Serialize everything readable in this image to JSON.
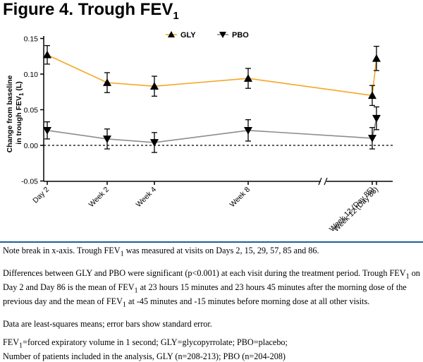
{
  "figure_title": "Figure 4. Trough FEV",
  "figure_title_sub": "1",
  "chart_data": {
    "type": "line",
    "title": "Figure 4. Trough FEV1",
    "ylabel_line1": "Change from baseline",
    "ylabel_line2_pre": "in trough FEV",
    "ylabel_line2_sub": "1",
    "ylabel_line2_post": " (L)",
    "ylim": [
      -0.05,
      0.15
    ],
    "yticks": [
      "0.15",
      "0.10",
      "0.05",
      "0.00",
      "-0.05"
    ],
    "ytick_values": [
      0.15,
      0.1,
      0.05,
      0.0,
      -0.05
    ],
    "categories": [
      "Day 2",
      "Week 2",
      "Week 4",
      "Week 8",
      "Week 12 (Day 85)",
      "Week 12 (Day 86)"
    ],
    "x_days": [
      2,
      15,
      29,
      57,
      85,
      86
    ],
    "series": [
      {
        "name": "GLY",
        "color": "#f5a623",
        "marker": "triangle-up",
        "values": [
          0.127,
          0.088,
          0.083,
          0.094,
          0.07,
          0.122
        ],
        "errors": [
          0.013,
          0.014,
          0.014,
          0.014,
          0.014,
          0.017
        ]
      },
      {
        "name": "PBO",
        "color": "#8c8c8c",
        "marker": "triangle-down",
        "values": [
          0.021,
          0.009,
          0.004,
          0.021,
          0.01,
          0.038
        ],
        "errors": [
          0.012,
          0.014,
          0.014,
          0.015,
          0.015,
          0.016
        ]
      }
    ],
    "legend_position": "top-center",
    "reference_line": 0.0,
    "axis_break": "x, between Week 8 and Week 12"
  },
  "notes": {
    "p1_pre": "Note break in x-axis. Trough FEV",
    "p1_sub": "1",
    "p1_post": " was measured at visits on Days 2, 15, 29, 57, 85 and 86.",
    "p2_a": "Differences between GLY and PBO were significant (p<0.001) at each visit during the treatment period. Trough FEV",
    "p2_sub1": "1",
    "p2_b": " on Day 2 and Day 86 is the mean of FEV",
    "p2_sub2": "1",
    "p2_c": " at 23 hours 15 minutes and 23 hours 45 minutes after the morning dose of the previous day and the mean of FEV",
    "p2_sub3": "1",
    "p2_d": " at -45 minutes and -15 minutes before morning dose at all other visits.",
    "p3": "Data are least-squares means; error bars show standard error.",
    "p4_pre": "FEV",
    "p4_sub": "1",
    "p4_post": "=forced expiratory volume in 1 second; GLY=glycopyrrolate; PBO=placebo;",
    "p5": "Number of patients included in the analysis, GLY (n=208-213); PBO (n=204-208)"
  }
}
